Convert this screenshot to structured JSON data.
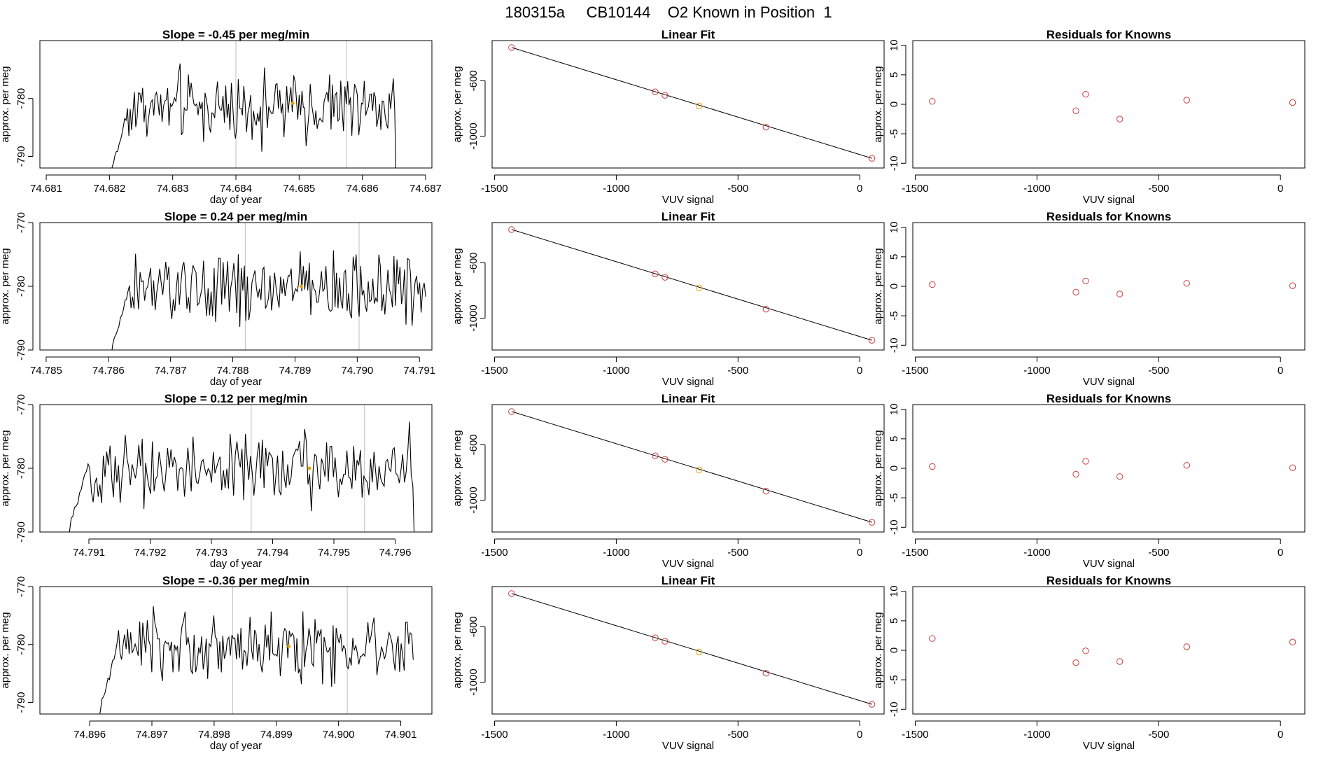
{
  "page_title": "180315a     CB10144    O2 Known in Position  1",
  "colors": {
    "trace": "#000000",
    "vline": "#bebebe",
    "point": "#cd3c3c",
    "highlight": "#e6a000",
    "frame": "#000000"
  },
  "chart_data": [
    {
      "type": "line",
      "row": 0,
      "title": "Slope =  -0.45  per meg/min",
      "xlabel": "day of year",
      "ylabel": "approx. per meg",
      "xlim": [
        74.6809,
        74.6871
      ],
      "ylim": [
        -792,
        -770
      ],
      "xticks": [
        74.681,
        74.682,
        74.683,
        74.684,
        74.685,
        74.686,
        74.687
      ],
      "xtick_labels": [
        "74.681",
        "74.682",
        "74.683",
        "74.684",
        "74.685",
        "74.686",
        "74.687"
      ],
      "yticks": [
        -790,
        -780
      ],
      "ytick_labels": [
        "-790",
        "-780"
      ],
      "trace_start": 74.682,
      "trace_end": 74.6866,
      "base_level": -781.5,
      "vlines": [
        74.684,
        74.68575
      ],
      "marker": {
        "x": 74.6849,
        "y": -780.8
      }
    },
    {
      "type": "line",
      "row": 1,
      "title": "Slope =  0.24  per meg/min",
      "xlabel": "day of year",
      "ylabel": "approx. per meg",
      "xlim": [
        74.7849,
        74.7912
      ],
      "ylim": [
        -790,
        -770
      ],
      "xticks": [
        74.785,
        74.786,
        74.787,
        74.788,
        74.789,
        74.79,
        74.791
      ],
      "xtick_labels": [
        "74.785",
        "74.786",
        "74.787",
        "74.788",
        "74.789",
        "74.790",
        "74.791"
      ],
      "yticks": [
        -790,
        -780,
        -770
      ],
      "ytick_labels": [
        "-790",
        "-780",
        "-770"
      ],
      "trace_start": 74.786,
      "trace_end": 74.7911,
      "base_level": -780.5,
      "vlines": [
        74.7882,
        74.79003
      ],
      "marker": {
        "x": 74.7891,
        "y": -780.0
      }
    },
    {
      "type": "line",
      "row": 2,
      "title": "Slope =  0.12  per meg/min",
      "xlabel": "day of year",
      "ylabel": "approx. per meg",
      "xlim": [
        74.7902,
        74.7966
      ],
      "ylim": [
        -790,
        -770
      ],
      "xticks": [
        74.791,
        74.792,
        74.793,
        74.794,
        74.795,
        74.796
      ],
      "xtick_labels": [
        "74.791",
        "74.792",
        "74.793",
        "74.794",
        "74.795",
        "74.796"
      ],
      "yticks": [
        -790,
        -780,
        -770
      ],
      "ytick_labels": [
        "-790",
        "-780",
        "-770"
      ],
      "trace_start": 74.7906,
      "trace_end": 74.7964,
      "base_level": -780.0,
      "vlines": [
        74.79365,
        74.7955
      ],
      "marker": {
        "x": 74.7946,
        "y": -780.0
      }
    },
    {
      "type": "line",
      "row": 3,
      "title": "Slope =  -0.36  per meg/min",
      "xlabel": "day of year",
      "ylabel": "approx. per meg",
      "xlim": [
        74.8952,
        74.9015
      ],
      "ylim": [
        -792,
        -770
      ],
      "xticks": [
        74.896,
        74.897,
        74.898,
        74.899,
        74.9,
        74.901
      ],
      "xtick_labels": [
        "74.896",
        "74.897",
        "74.898",
        "74.899",
        "74.900",
        "74.901"
      ],
      "yticks": [
        -790,
        -780,
        -770
      ],
      "ytick_labels": [
        "-790",
        "-780",
        "-770"
      ],
      "trace_start": 74.8961,
      "trace_end": 74.9012,
      "base_level": -780.5,
      "vlines": [
        74.8983,
        74.90014
      ],
      "marker": {
        "x": 74.8992,
        "y": -780.3
      }
    },
    {
      "type": "scatter",
      "row": 0,
      "title": "Linear Fit",
      "xlabel": "VUV signal",
      "ylabel": "approx. per meg",
      "xlim": [
        -1510,
        100
      ],
      "ylim": [
        -1230,
        -310
      ],
      "xticks": [
        -1500,
        -1000,
        -500,
        0
      ],
      "xtick_labels": [
        "-1500",
        "-1000",
        "-500",
        "0"
      ],
      "yticks": [
        -1000,
        -600
      ],
      "ytick_labels": [
        "-1000",
        "-600"
      ],
      "points": [
        [
          -1430,
          -360
        ],
        [
          -840,
          -680
        ],
        [
          -800,
          -705
        ],
        [
          -660,
          -782
        ],
        [
          -385,
          -935
        ],
        [
          50,
          -1160
        ]
      ],
      "highlight_index": 3,
      "fit": [
        [
          -1430,
          -360
        ],
        [
          50,
          -1160
        ]
      ]
    },
    {
      "type": "scatter",
      "row": 1,
      "title": "Linear Fit",
      "xlabel": "VUV signal",
      "ylabel": "approx. per meg",
      "xlim": [
        -1510,
        100
      ],
      "ylim": [
        -1230,
        -310
      ],
      "xticks": [
        -1500,
        -1000,
        -500,
        0
      ],
      "xtick_labels": [
        "-1500",
        "-1000",
        "-500",
        "0"
      ],
      "yticks": [
        -1000,
        -600
      ],
      "ytick_labels": [
        "-1000",
        "-600"
      ],
      "points": [
        [
          -1430,
          -360
        ],
        [
          -840,
          -680
        ],
        [
          -800,
          -705
        ],
        [
          -660,
          -782
        ],
        [
          -385,
          -935
        ],
        [
          50,
          -1160
        ]
      ],
      "highlight_index": 3,
      "fit": [
        [
          -1430,
          -360
        ],
        [
          50,
          -1160
        ]
      ]
    },
    {
      "type": "scatter",
      "row": 2,
      "title": "Linear Fit",
      "xlabel": "VUV signal",
      "ylabel": "approx. per meg",
      "xlim": [
        -1510,
        100
      ],
      "ylim": [
        -1230,
        -310
      ],
      "xticks": [
        -1500,
        -1000,
        -500,
        0
      ],
      "xtick_labels": [
        "-1500",
        "-1000",
        "-500",
        "0"
      ],
      "yticks": [
        -1000,
        -600
      ],
      "ytick_labels": [
        "-1000",
        "-600"
      ],
      "points": [
        [
          -1430,
          -360
        ],
        [
          -840,
          -680
        ],
        [
          -800,
          -705
        ],
        [
          -660,
          -782
        ],
        [
          -385,
          -935
        ],
        [
          50,
          -1160
        ]
      ],
      "highlight_index": 3,
      "fit": [
        [
          -1430,
          -360
        ],
        [
          50,
          -1160
        ]
      ]
    },
    {
      "type": "scatter",
      "row": 3,
      "title": "Linear Fit",
      "xlabel": "VUV signal",
      "ylabel": "approx. per meg",
      "xlim": [
        -1510,
        100
      ],
      "ylim": [
        -1230,
        -310
      ],
      "xticks": [
        -1500,
        -1000,
        -500,
        0
      ],
      "xtick_labels": [
        "-1500",
        "-1000",
        "-500",
        "0"
      ],
      "yticks": [
        -1000,
        -600
      ],
      "ytick_labels": [
        "-1000",
        "-600"
      ],
      "points": [
        [
          -1430,
          -360
        ],
        [
          -840,
          -680
        ],
        [
          -800,
          -705
        ],
        [
          -660,
          -782
        ],
        [
          -385,
          -935
        ],
        [
          50,
          -1160
        ]
      ],
      "highlight_index": 3,
      "fit": [
        [
          -1430,
          -360
        ],
        [
          50,
          -1160
        ]
      ]
    },
    {
      "type": "scatter",
      "row": 0,
      "title": "Residuals for Knowns",
      "xlabel": "VUV signal",
      "ylabel": "approx. per meg",
      "xlim": [
        -1510,
        100
      ],
      "ylim": [
        -10.8,
        10.8
      ],
      "xticks": [
        -1500,
        -1000,
        -500,
        0
      ],
      "xtick_labels": [
        "-1500",
        "-1000",
        "-500",
        "0"
      ],
      "yticks": [
        -10,
        -5,
        0,
        5,
        10
      ],
      "ytick_labels": [
        "-10",
        "-5",
        "0",
        "5",
        "10"
      ],
      "points": [
        [
          -1430,
          0.5
        ],
        [
          -840,
          -1.1
        ],
        [
          -800,
          1.7
        ],
        [
          -660,
          -2.5
        ],
        [
          -385,
          0.7
        ],
        [
          50,
          0.3
        ]
      ]
    },
    {
      "type": "scatter",
      "row": 1,
      "title": "Residuals for Knowns",
      "xlabel": "VUV signal",
      "ylabel": "approx. per meg",
      "xlim": [
        -1510,
        100
      ],
      "ylim": [
        -10.8,
        10.8
      ],
      "xticks": [
        -1500,
        -1000,
        -500,
        0
      ],
      "xtick_labels": [
        "-1500",
        "-1000",
        "-500",
        "0"
      ],
      "yticks": [
        -10,
        -5,
        0,
        5,
        10
      ],
      "ytick_labels": [
        "-10",
        "-5",
        "0",
        "5",
        "10"
      ],
      "points": [
        [
          -1430,
          0.3
        ],
        [
          -840,
          -1.0
        ],
        [
          -800,
          0.9
        ],
        [
          -660,
          -1.3
        ],
        [
          -385,
          0.5
        ],
        [
          50,
          0.1
        ]
      ]
    },
    {
      "type": "scatter",
      "row": 2,
      "title": "Residuals for Knowns",
      "xlabel": "VUV signal",
      "ylabel": "approx. per meg",
      "xlim": [
        -1510,
        100
      ],
      "ylim": [
        -10.8,
        10.8
      ],
      "xticks": [
        -1500,
        -1000,
        -500,
        0
      ],
      "xtick_labels": [
        "-1500",
        "-1000",
        "-500",
        "0"
      ],
      "yticks": [
        -10,
        -5,
        0,
        5,
        10
      ],
      "ytick_labels": [
        "-10",
        "-5",
        "0",
        "5",
        "10"
      ],
      "points": [
        [
          -1430,
          0.3
        ],
        [
          -840,
          -1.0
        ],
        [
          -800,
          1.2
        ],
        [
          -660,
          -1.4
        ],
        [
          -385,
          0.5
        ],
        [
          50,
          0.1
        ]
      ]
    },
    {
      "type": "scatter",
      "row": 3,
      "title": "Residuals for Knowns",
      "xlabel": "VUV signal",
      "ylabel": "approx. per meg",
      "xlim": [
        -1510,
        100
      ],
      "ylim": [
        -10.8,
        10.8
      ],
      "xticks": [
        -1500,
        -1000,
        -500,
        0
      ],
      "xtick_labels": [
        "-1500",
        "-1000",
        "-500",
        "0"
      ],
      "yticks": [
        -10,
        -5,
        0,
        5,
        10
      ],
      "ytick_labels": [
        "-10",
        "-5",
        "0",
        "5",
        "10"
      ],
      "points": [
        [
          -1430,
          2.0
        ],
        [
          -840,
          -2.1
        ],
        [
          -800,
          -0.1
        ],
        [
          -660,
          -1.9
        ],
        [
          -385,
          0.6
        ],
        [
          50,
          1.4
        ]
      ]
    }
  ]
}
